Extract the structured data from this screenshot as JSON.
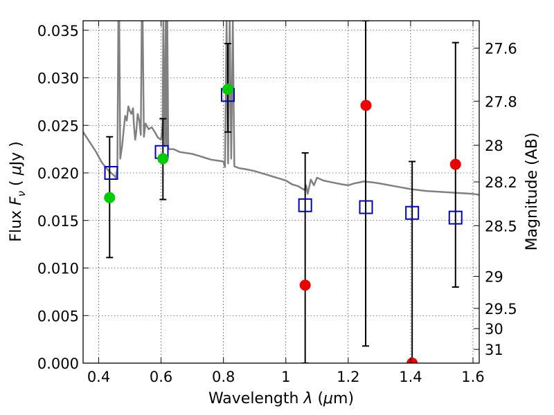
{
  "chart_data": {
    "type": "scatter",
    "title": "",
    "xlabel": {
      "prefix": "Wavelength  ",
      "symbol": "λ",
      "suffix": " (",
      "mu": "μ",
      "unit": "m)"
    },
    "ylabel": {
      "prefix": "Flux  ",
      "symbol": "F",
      "sub": "ν",
      "suffix": "  ( ",
      "mu": "μ",
      "unit": "Jy )"
    },
    "y2label": "Magnitude (AB)",
    "xlim": [
      0.35,
      1.62
    ],
    "ylim": [
      0.0,
      0.036
    ],
    "grid": true,
    "x_ticks": [
      {
        "v": 0.4,
        "t": "0.4"
      },
      {
        "v": 0.6,
        "t": "0.6"
      },
      {
        "v": 0.8,
        "t": "0.8"
      },
      {
        "v": 1.0,
        "t": "1"
      },
      {
        "v": 1.2,
        "t": "1.2"
      },
      {
        "v": 1.4,
        "t": "1.4"
      },
      {
        "v": 1.6,
        "t": "1.6"
      }
    ],
    "y_ticks": [
      {
        "v": 0.0,
        "t": "0.000"
      },
      {
        "v": 0.005,
        "t": "0.005"
      },
      {
        "v": 0.01,
        "t": "0.010"
      },
      {
        "v": 0.015,
        "t": "0.015"
      },
      {
        "v": 0.02,
        "t": "0.020"
      },
      {
        "v": 0.025,
        "t": "0.025"
      },
      {
        "v": 0.03,
        "t": "0.030"
      },
      {
        "v": 0.035,
        "t": "0.035"
      }
    ],
    "y2_ticks": [
      {
        "v": 27.6,
        "t": "27.6"
      },
      {
        "v": 27.8,
        "t": "27.8"
      },
      {
        "v": 28.0,
        "t": "28"
      },
      {
        "v": 28.2,
        "t": "28.2"
      },
      {
        "v": 28.5,
        "t": "28.5"
      },
      {
        "v": 29.0,
        "t": "29"
      },
      {
        "v": 29.5,
        "t": "29.5"
      },
      {
        "v": 30.0,
        "t": "30"
      },
      {
        "v": 31.0,
        "t": "31"
      }
    ],
    "series": [
      {
        "kind": "line",
        "color": "#808080",
        "points": [
          [
            0.35,
            0.0243
          ],
          [
            0.37,
            0.0233
          ],
          [
            0.39,
            0.0223
          ],
          [
            0.41,
            0.0211
          ],
          [
            0.43,
            0.0203
          ],
          [
            0.45,
            0.0197
          ],
          [
            0.455,
            0.0195
          ],
          [
            0.46,
            0.0205
          ],
          [
            0.463,
            0.036
          ],
          [
            0.466,
            0.036
          ],
          [
            0.469,
            0.0215
          ],
          [
            0.475,
            0.0228
          ],
          [
            0.48,
            0.0245
          ],
          [
            0.485,
            0.026
          ],
          [
            0.49,
            0.0255
          ],
          [
            0.495,
            0.027
          ],
          [
            0.5,
            0.0265
          ],
          [
            0.505,
            0.0262
          ],
          [
            0.51,
            0.0268
          ],
          [
            0.513,
            0.025
          ],
          [
            0.517,
            0.0235
          ],
          [
            0.52,
            0.0242
          ],
          [
            0.525,
            0.0262
          ],
          [
            0.53,
            0.0255
          ],
          [
            0.535,
            0.024
          ],
          [
            0.538,
            0.036
          ],
          [
            0.541,
            0.036
          ],
          [
            0.545,
            0.0238
          ],
          [
            0.55,
            0.0252
          ],
          [
            0.56,
            0.0246
          ],
          [
            0.57,
            0.0248
          ],
          [
            0.58,
            0.0243
          ],
          [
            0.59,
            0.0237
          ],
          [
            0.6,
            0.0235
          ],
          [
            0.605,
            0.025
          ],
          [
            0.607,
            0.036
          ],
          [
            0.612,
            0.0228
          ],
          [
            0.615,
            0.036
          ],
          [
            0.618,
            0.023
          ],
          [
            0.62,
            0.036
          ],
          [
            0.623,
            0.0225
          ],
          [
            0.64,
            0.0225
          ],
          [
            0.66,
            0.0222
          ],
          [
            0.68,
            0.0221
          ],
          [
            0.7,
            0.022
          ],
          [
            0.72,
            0.0218
          ],
          [
            0.74,
            0.0216
          ],
          [
            0.76,
            0.0214
          ],
          [
            0.78,
            0.0213
          ],
          [
            0.8,
            0.0212
          ],
          [
            0.805,
            0.0206
          ],
          [
            0.81,
            0.036
          ],
          [
            0.815,
            0.021
          ],
          [
            0.82,
            0.036
          ],
          [
            0.825,
            0.0215
          ],
          [
            0.83,
            0.036
          ],
          [
            0.835,
            0.0207
          ],
          [
            0.85,
            0.0205
          ],
          [
            0.87,
            0.0204
          ],
          [
            0.9,
            0.0202
          ],
          [
            0.93,
            0.0199
          ],
          [
            0.96,
            0.0196
          ],
          [
            0.98,
            0.0194
          ],
          [
            1.0,
            0.0192
          ],
          [
            1.02,
            0.0188
          ],
          [
            1.04,
            0.0186
          ],
          [
            1.06,
            0.0182
          ],
          [
            1.065,
            0.0187
          ],
          [
            1.07,
            0.0178
          ],
          [
            1.08,
            0.0193
          ],
          [
            1.09,
            0.0187
          ],
          [
            1.1,
            0.0195
          ],
          [
            1.12,
            0.0192
          ],
          [
            1.15,
            0.019
          ],
          [
            1.18,
            0.0188
          ],
          [
            1.2,
            0.0187
          ],
          [
            1.22,
            0.0189
          ],
          [
            1.25,
            0.0191
          ],
          [
            1.28,
            0.019
          ],
          [
            1.3,
            0.0189
          ],
          [
            1.35,
            0.0186
          ],
          [
            1.4,
            0.0183
          ],
          [
            1.45,
            0.0181
          ],
          [
            1.5,
            0.018
          ],
          [
            1.55,
            0.0179
          ],
          [
            1.6,
            0.0178
          ],
          [
            1.62,
            0.0177
          ]
        ]
      },
      {
        "kind": "errorbar",
        "color": "#000000",
        "points": [
          {
            "x": 0.435,
            "lo": 0.0111,
            "hi": 0.0238
          },
          {
            "x": 0.606,
            "lo": 0.0172,
            "hi": 0.0257
          },
          {
            "x": 0.814,
            "lo": 0.0243,
            "hi": 0.0336
          },
          {
            "x": 1.062,
            "lo": 0.0,
            "hi": 0.0221
          },
          {
            "x": 1.256,
            "lo": 0.0018,
            "hi": 0.036
          },
          {
            "x": 1.405,
            "lo": 0.0,
            "hi": 0.0212
          },
          {
            "x": 1.544,
            "lo": 0.008,
            "hi": 0.0337
          }
        ]
      },
      {
        "kind": "square",
        "color": "#0000cc",
        "points": [
          [
            0.44,
            0.02
          ],
          [
            0.602,
            0.0222
          ],
          [
            0.814,
            0.0282
          ],
          [
            1.062,
            0.0166
          ],
          [
            1.257,
            0.0164
          ],
          [
            1.405,
            0.0158
          ],
          [
            1.544,
            0.0153
          ]
        ]
      },
      {
        "kind": "circle",
        "color": "#00cc00",
        "points": [
          [
            0.435,
            0.0174
          ],
          [
            0.606,
            0.0215
          ],
          [
            0.814,
            0.0288
          ]
        ]
      },
      {
        "kind": "circle",
        "color": "#ee0000",
        "points": [
          [
            1.062,
            0.0082
          ],
          [
            1.257,
            0.0271
          ],
          [
            1.405,
            0.0
          ],
          [
            1.544,
            0.0209
          ]
        ]
      }
    ]
  }
}
